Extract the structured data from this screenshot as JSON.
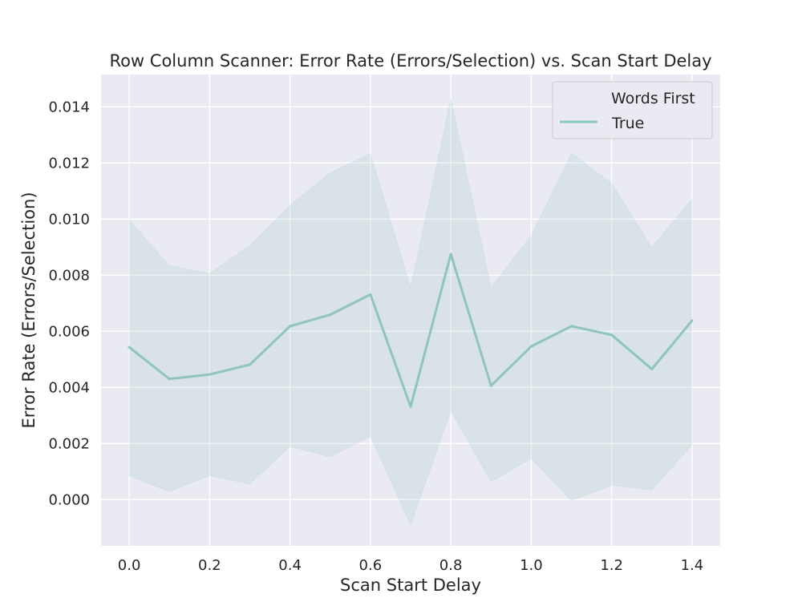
{
  "chart_data": {
    "type": "line",
    "title": "Row Column Scanner: Error Rate (Errors/Selection) vs. Scan Start Delay",
    "xlabel": "Scan Start Delay",
    "ylabel": "Error Rate (Errors/Selection)",
    "xlim": [
      -0.07,
      1.47
    ],
    "ylim": [
      -0.00165,
      0.01515
    ],
    "xticks": [
      0.0,
      0.2,
      0.4,
      0.6,
      0.8,
      1.0,
      1.2,
      1.4
    ],
    "xtick_labels": [
      "0.0",
      "0.2",
      "0.4",
      "0.6",
      "0.8",
      "1.0",
      "1.2",
      "1.4"
    ],
    "yticks": [
      0.0,
      0.002,
      0.004,
      0.006,
      0.008,
      0.01,
      0.012,
      0.014
    ],
    "ytick_labels": [
      "0.000",
      "0.002",
      "0.004",
      "0.006",
      "0.008",
      "0.010",
      "0.012",
      "0.014"
    ],
    "grid": true,
    "legend": {
      "title": "Words First",
      "placement": "top-right"
    },
    "series": [
      {
        "name": "True",
        "color": "#8fc4c0",
        "x": [
          0.0,
          0.1,
          0.2,
          0.3,
          0.4,
          0.5,
          0.6,
          0.7,
          0.8,
          0.9,
          1.0,
          1.1,
          1.2,
          1.3,
          1.4
        ],
        "y": [
          0.00543,
          0.0043,
          0.00446,
          0.00481,
          0.00618,
          0.00659,
          0.00731,
          0.00331,
          0.00875,
          0.00406,
          0.00546,
          0.00618,
          0.00587,
          0.00465,
          0.00638
        ],
        "ci_lower": [
          0.00085,
          0.00028,
          0.00085,
          0.00055,
          0.00189,
          0.00152,
          0.00225,
          -0.00091,
          0.00316,
          0.00064,
          0.00146,
          -4e-05,
          0.00051,
          0.00034,
          0.00195
        ],
        "ci_upper": [
          0.00997,
          0.00834,
          0.00806,
          0.00906,
          0.01049,
          0.01165,
          0.01234,
          0.00756,
          0.0143,
          0.00757,
          0.00941,
          0.01235,
          0.01127,
          0.00899,
          0.01073
        ]
      }
    ]
  }
}
